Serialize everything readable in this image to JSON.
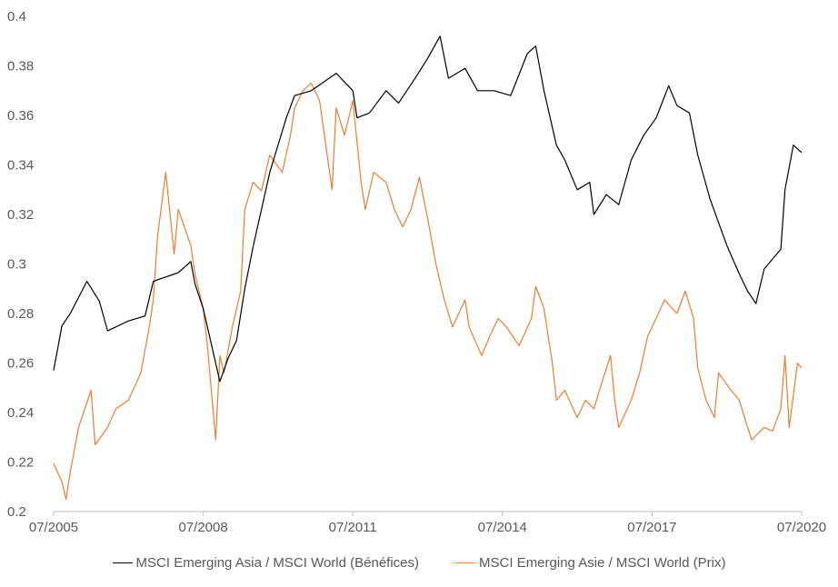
{
  "chart_data": {
    "type": "line",
    "title": "",
    "xlabel": "",
    "ylabel": "",
    "xlim": [
      "2005-07",
      "2020-07"
    ],
    "ylim": [
      0.2,
      0.4
    ],
    "grid": false,
    "legend_placement": "bottom",
    "x_tick_labels": [
      "07/2005",
      "07/2008",
      "07/2011",
      "07/2014",
      "07/2017",
      "07/2020"
    ],
    "x_ticks": [
      "2005-07",
      "2008-07",
      "2011-07",
      "2014-07",
      "2017-07",
      "2020-07"
    ],
    "y_tick_labels": [
      "0.2",
      "0.22",
      "0.24",
      "0.26",
      "0.28",
      "0.3",
      "0.32",
      "0.34",
      "0.36",
      "0.38",
      "0.4"
    ],
    "y_ticks": [
      0.2,
      0.22,
      0.24,
      0.26,
      0.28,
      0.3,
      0.32,
      0.34,
      0.36,
      0.38,
      0.4
    ],
    "series": [
      {
        "name": "MSCI Emerging Asia / MSCI World (Bénéfices)",
        "color": "#000000",
        "points": [
          [
            "2005-07",
            0.257
          ],
          [
            "2005-09",
            0.275
          ],
          [
            "2005-11",
            0.28
          ],
          [
            "2006-03",
            0.293
          ],
          [
            "2006-06",
            0.285
          ],
          [
            "2006-08",
            0.273
          ],
          [
            "2007-01",
            0.277
          ],
          [
            "2007-05",
            0.279
          ],
          [
            "2007-07",
            0.293
          ],
          [
            "2008-01",
            0.2965
          ],
          [
            "2008-04",
            0.301
          ],
          [
            "2008-05",
            0.292
          ],
          [
            "2008-07",
            0.282
          ],
          [
            "2008-11",
            0.2525
          ],
          [
            "2009-01",
            0.262
          ],
          [
            "2009-03",
            0.269
          ],
          [
            "2009-05",
            0.29
          ],
          [
            "2009-07",
            0.307
          ],
          [
            "2009-11",
            0.337
          ],
          [
            "2010-03",
            0.359
          ],
          [
            "2010-05",
            0.368
          ],
          [
            "2010-09",
            0.37
          ],
          [
            "2011-03",
            0.377
          ],
          [
            "2011-07",
            0.37
          ],
          [
            "2011-08",
            0.359
          ],
          [
            "2011-11",
            0.361
          ],
          [
            "2012-03",
            0.37
          ],
          [
            "2012-06",
            0.365
          ],
          [
            "2012-10",
            0.375
          ],
          [
            "2013-01",
            0.383
          ],
          [
            "2013-04",
            0.392
          ],
          [
            "2013-06",
            0.375
          ],
          [
            "2013-10",
            0.379
          ],
          [
            "2014-01",
            0.37
          ],
          [
            "2014-05",
            0.37
          ],
          [
            "2014-09",
            0.368
          ],
          [
            "2015-01",
            0.385
          ],
          [
            "2015-03",
            0.388
          ],
          [
            "2015-05",
            0.37
          ],
          [
            "2015-08",
            0.348
          ],
          [
            "2015-10",
            0.342
          ],
          [
            "2016-01",
            0.33
          ],
          [
            "2016-04",
            0.333
          ],
          [
            "2016-05",
            0.32
          ],
          [
            "2016-08",
            0.328
          ],
          [
            "2016-11",
            0.324
          ],
          [
            "2017-02",
            0.342
          ],
          [
            "2017-05",
            0.352
          ],
          [
            "2017-08",
            0.359
          ],
          [
            "2017-11",
            0.372
          ],
          [
            "2018-01",
            0.364
          ],
          [
            "2018-04",
            0.361
          ],
          [
            "2018-06",
            0.344
          ],
          [
            "2018-09",
            0.326
          ],
          [
            "2019-01",
            0.3075
          ],
          [
            "2019-04",
            0.296
          ],
          [
            "2019-06",
            0.289
          ],
          [
            "2019-08",
            0.284
          ],
          [
            "2019-10",
            0.298
          ],
          [
            "2020-02",
            0.306
          ],
          [
            "2020-03",
            0.33
          ],
          [
            "2020-05",
            0.348
          ],
          [
            "2020-07",
            0.345
          ]
        ]
      },
      {
        "name": "MSCI Emerging Asie / MSCI World (Prix)",
        "color": "#ED7D31",
        "points": [
          [
            "2005-07",
            0.2195
          ],
          [
            "2005-09",
            0.212
          ],
          [
            "2005-10",
            0.205
          ],
          [
            "2005-11",
            0.216
          ],
          [
            "2006-01",
            0.234
          ],
          [
            "2006-04",
            0.249
          ],
          [
            "2006-05",
            0.227
          ],
          [
            "2006-08",
            0.234
          ],
          [
            "2006-10",
            0.2415
          ],
          [
            "2007-01",
            0.245
          ],
          [
            "2007-04",
            0.256
          ],
          [
            "2007-06",
            0.2745
          ],
          [
            "2007-07",
            0.2855
          ],
          [
            "2007-08",
            0.311
          ],
          [
            "2007-10",
            0.337
          ],
          [
            "2007-12",
            0.304
          ],
          [
            "2008-01",
            0.322
          ],
          [
            "2008-04",
            0.3075
          ],
          [
            "2008-05",
            0.296
          ],
          [
            "2008-07",
            0.282
          ],
          [
            "2008-08",
            0.267
          ],
          [
            "2008-10",
            0.229
          ],
          [
            "2008-11",
            0.263
          ],
          [
            "2008-12",
            0.256
          ],
          [
            "2009-02",
            0.2745
          ],
          [
            "2009-04",
            0.289
          ],
          [
            "2009-05",
            0.322
          ],
          [
            "2009-07",
            0.333
          ],
          [
            "2009-09",
            0.3295
          ],
          [
            "2009-11",
            0.344
          ],
          [
            "2010-02",
            0.337
          ],
          [
            "2010-04",
            0.352
          ],
          [
            "2010-05",
            0.363
          ],
          [
            "2010-07",
            0.37
          ],
          [
            "2010-09",
            0.373
          ],
          [
            "2010-11",
            0.366
          ],
          [
            "2011-02",
            0.33
          ],
          [
            "2011-03",
            0.363
          ],
          [
            "2011-05",
            0.352
          ],
          [
            "2011-07",
            0.366
          ],
          [
            "2011-09",
            0.333
          ],
          [
            "2011-10",
            0.322
          ],
          [
            "2011-12",
            0.337
          ],
          [
            "2012-03",
            0.333
          ],
          [
            "2012-05",
            0.322
          ],
          [
            "2012-07",
            0.315
          ],
          [
            "2012-09",
            0.322
          ],
          [
            "2012-11",
            0.335
          ],
          [
            "2013-01",
            0.3185
          ],
          [
            "2013-03",
            0.3
          ],
          [
            "2013-05",
            0.2855
          ],
          [
            "2013-07",
            0.2745
          ],
          [
            "2013-10",
            0.2855
          ],
          [
            "2013-11",
            0.2745
          ],
          [
            "2014-02",
            0.263
          ],
          [
            "2014-04",
            0.271
          ],
          [
            "2014-06",
            0.278
          ],
          [
            "2014-08",
            0.2745
          ],
          [
            "2014-11",
            0.267
          ],
          [
            "2015-02",
            0.278
          ],
          [
            "2015-03",
            0.291
          ],
          [
            "2015-05",
            0.282
          ],
          [
            "2015-07",
            0.26
          ],
          [
            "2015-08",
            0.245
          ],
          [
            "2015-10",
            0.249
          ],
          [
            "2016-01",
            0.238
          ],
          [
            "2016-03",
            0.245
          ],
          [
            "2016-05",
            0.2415
          ],
          [
            "2016-07",
            0.2525
          ],
          [
            "2016-09",
            0.263
          ],
          [
            "2016-10",
            0.245
          ],
          [
            "2016-11",
            0.234
          ],
          [
            "2017-02",
            0.245
          ],
          [
            "2017-04",
            0.256
          ],
          [
            "2017-06",
            0.271
          ],
          [
            "2017-08",
            0.278
          ],
          [
            "2017-10",
            0.2855
          ],
          [
            "2018-01",
            0.28
          ],
          [
            "2018-03",
            0.289
          ],
          [
            "2018-05",
            0.278
          ],
          [
            "2018-06",
            0.258
          ],
          [
            "2018-08",
            0.245
          ],
          [
            "2018-10",
            0.238
          ],
          [
            "2018-11",
            0.256
          ],
          [
            "2019-02",
            0.249
          ],
          [
            "2019-04",
            0.245
          ],
          [
            "2019-06",
            0.234
          ],
          [
            "2019-07",
            0.229
          ],
          [
            "2019-10",
            0.234
          ],
          [
            "2019-12",
            0.2325
          ],
          [
            "2020-02",
            0.2415
          ],
          [
            "2020-03",
            0.263
          ],
          [
            "2020-04",
            0.234
          ],
          [
            "2020-06",
            0.26
          ],
          [
            "2020-07",
            0.258
          ]
        ]
      }
    ]
  }
}
